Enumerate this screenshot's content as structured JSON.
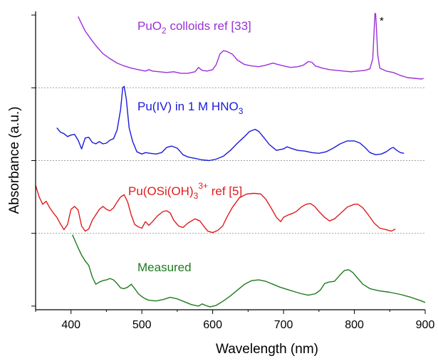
{
  "chart_data": {
    "type": "line",
    "title": "",
    "xlabel": "Wavelength (nm)",
    "ylabel": "Absorbance (a.u.)",
    "xlim": [
      350,
      900
    ],
    "x_ticks": [
      400,
      500,
      600,
      700,
      800,
      900
    ],
    "x_tick_labels": [
      "400",
      "500",
      "600",
      "700",
      "800",
      "900"
    ],
    "y_tick_labels_shown": false,
    "grid": "dotted baseline for each offset trace",
    "legend": "none",
    "baselines": [
      {
        "offset": 3,
        "color": "#a0a0a0",
        "style": "dotted"
      },
      {
        "offset": 2,
        "color": "#a0a0a0",
        "style": "dotted"
      },
      {
        "offset": 1,
        "color": "#a0a0a0",
        "style": "dotted"
      }
    ],
    "series": [
      {
        "label_main": "PuO",
        "label_sub": "2",
        "label_rest": " colloids ref [33]",
        "marker": "*",
        "color": "#9b30d9",
        "offset": 3,
        "points": [
          [
            410,
            0.98
          ],
          [
            415,
            0.88
          ],
          [
            420,
            0.78
          ],
          [
            428,
            0.67
          ],
          [
            435,
            0.58
          ],
          [
            445,
            0.47
          ],
          [
            455,
            0.4
          ],
          [
            465,
            0.34
          ],
          [
            475,
            0.3
          ],
          [
            485,
            0.27
          ],
          [
            495,
            0.25
          ],
          [
            505,
            0.23
          ],
          [
            510,
            0.25
          ],
          [
            515,
            0.23
          ],
          [
            525,
            0.22
          ],
          [
            535,
            0.21
          ],
          [
            545,
            0.22
          ],
          [
            555,
            0.2
          ],
          [
            565,
            0.2
          ],
          [
            575,
            0.22
          ],
          [
            580,
            0.28
          ],
          [
            585,
            0.24
          ],
          [
            592,
            0.23
          ],
          [
            600,
            0.25
          ],
          [
            605,
            0.32
          ],
          [
            610,
            0.46
          ],
          [
            615,
            0.51
          ],
          [
            620,
            0.5
          ],
          [
            628,
            0.46
          ],
          [
            635,
            0.38
          ],
          [
            645,
            0.32
          ],
          [
            655,
            0.3
          ],
          [
            665,
            0.29
          ],
          [
            675,
            0.31
          ],
          [
            685,
            0.34
          ],
          [
            692,
            0.32
          ],
          [
            700,
            0.3
          ],
          [
            710,
            0.28
          ],
          [
            720,
            0.29
          ],
          [
            728,
            0.31
          ],
          [
            735,
            0.36
          ],
          [
            740,
            0.35
          ],
          [
            745,
            0.3
          ],
          [
            755,
            0.27
          ],
          [
            765,
            0.25
          ],
          [
            775,
            0.24
          ],
          [
            785,
            0.23
          ],
          [
            795,
            0.22
          ],
          [
            805,
            0.23
          ],
          [
            815,
            0.24
          ],
          [
            822,
            0.26
          ],
          [
            826,
            0.4
          ],
          [
            828,
            0.8
          ],
          [
            829,
            1.02
          ],
          [
            830,
            1.02
          ],
          [
            831,
            0.85
          ],
          [
            833,
            0.45
          ],
          [
            836,
            0.27
          ],
          [
            845,
            0.23
          ],
          [
            855,
            0.21
          ],
          [
            865,
            0.17
          ],
          [
            875,
            0.14
          ],
          [
            885,
            0.13
          ],
          [
            895,
            0.12
          ],
          [
            898,
            0.13
          ]
        ]
      },
      {
        "label_main": "Pu(IV) in 1 M HNO",
        "label_sub": "3",
        "label_rest": "",
        "color": "#1a1adb",
        "offset": 2,
        "points": [
          [
            380,
            0.45
          ],
          [
            385,
            0.39
          ],
          [
            390,
            0.37
          ],
          [
            395,
            0.33
          ],
          [
            400,
            0.35
          ],
          [
            405,
            0.36
          ],
          [
            410,
            0.28
          ],
          [
            415,
            0.16
          ],
          [
            420,
            0.31
          ],
          [
            425,
            0.32
          ],
          [
            430,
            0.25
          ],
          [
            435,
            0.23
          ],
          [
            440,
            0.26
          ],
          [
            445,
            0.23
          ],
          [
            450,
            0.24
          ],
          [
            455,
            0.28
          ],
          [
            460,
            0.3
          ],
          [
            465,
            0.42
          ],
          [
            470,
            0.7
          ],
          [
            473,
            1.0
          ],
          [
            475,
            1.02
          ],
          [
            478,
            0.85
          ],
          [
            482,
            0.45
          ],
          [
            487,
            0.26
          ],
          [
            493,
            0.12
          ],
          [
            500,
            0.09
          ],
          [
            505,
            0.11
          ],
          [
            512,
            0.1
          ],
          [
            520,
            0.09
          ],
          [
            528,
            0.11
          ],
          [
            535,
            0.18
          ],
          [
            542,
            0.2
          ],
          [
            550,
            0.17
          ],
          [
            558,
            0.08
          ],
          [
            565,
            0.05
          ],
          [
            575,
            0.03
          ],
          [
            585,
            0.01
          ],
          [
            595,
            0.0
          ],
          [
            605,
            0.02
          ],
          [
            615,
            0.06
          ],
          [
            625,
            0.14
          ],
          [
            635,
            0.24
          ],
          [
            645,
            0.33
          ],
          [
            652,
            0.4
          ],
          [
            660,
            0.43
          ],
          [
            665,
            0.4
          ],
          [
            672,
            0.32
          ],
          [
            680,
            0.22
          ],
          [
            690,
            0.14
          ],
          [
            700,
            0.16
          ],
          [
            705,
            0.19
          ],
          [
            710,
            0.17
          ],
          [
            720,
            0.14
          ],
          [
            730,
            0.13
          ],
          [
            740,
            0.11
          ],
          [
            750,
            0.1
          ],
          [
            760,
            0.12
          ],
          [
            770,
            0.17
          ],
          [
            780,
            0.23
          ],
          [
            790,
            0.27
          ],
          [
            800,
            0.27
          ],
          [
            808,
            0.24
          ],
          [
            815,
            0.18
          ],
          [
            822,
            0.11
          ],
          [
            830,
            0.08
          ],
          [
            838,
            0.09
          ],
          [
            845,
            0.12
          ],
          [
            852,
            0.17
          ],
          [
            855,
            0.18
          ],
          [
            860,
            0.14
          ],
          [
            865,
            0.11
          ],
          [
            870,
            0.1
          ]
        ]
      },
      {
        "label_main": "Pu(OSi(OH)",
        "label_sub": "3",
        "label_sup": "3+",
        "label_rest": " ref [5]",
        "color": "#e01b1b",
        "offset": 1,
        "points": [
          [
            350,
            0.66
          ],
          [
            355,
            0.5
          ],
          [
            360,
            0.4
          ],
          [
            365,
            0.44
          ],
          [
            370,
            0.35
          ],
          [
            375,
            0.28
          ],
          [
            380,
            0.22
          ],
          [
            385,
            0.13
          ],
          [
            390,
            0.05
          ],
          [
            395,
            0.12
          ],
          [
            400,
            0.33
          ],
          [
            405,
            0.37
          ],
          [
            410,
            0.32
          ],
          [
            415,
            0.1
          ],
          [
            420,
            0.03
          ],
          [
            425,
            0.06
          ],
          [
            430,
            0.18
          ],
          [
            440,
            0.33
          ],
          [
            445,
            0.37
          ],
          [
            450,
            0.33
          ],
          [
            455,
            0.31
          ],
          [
            460,
            0.35
          ],
          [
            465,
            0.43
          ],
          [
            470,
            0.5
          ],
          [
            475,
            0.53
          ],
          [
            480,
            0.43
          ],
          [
            485,
            0.25
          ],
          [
            490,
            0.12
          ],
          [
            495,
            0.09
          ],
          [
            500,
            0.07
          ],
          [
            505,
            0.16
          ],
          [
            510,
            0.11
          ],
          [
            515,
            0.16
          ],
          [
            522,
            0.24
          ],
          [
            530,
            0.3
          ],
          [
            535,
            0.31
          ],
          [
            540,
            0.28
          ],
          [
            545,
            0.18
          ],
          [
            552,
            0.1
          ],
          [
            558,
            0.08
          ],
          [
            565,
            0.14
          ],
          [
            575,
            0.2
          ],
          [
            582,
            0.17
          ],
          [
            588,
            0.09
          ],
          [
            593,
            0.03
          ],
          [
            600,
            0.01
          ],
          [
            607,
            0.04
          ],
          [
            614,
            0.1
          ],
          [
            620,
            0.22
          ],
          [
            628,
            0.36
          ],
          [
            638,
            0.49
          ],
          [
            648,
            0.54
          ],
          [
            658,
            0.55
          ],
          [
            668,
            0.54
          ],
          [
            675,
            0.47
          ],
          [
            683,
            0.34
          ],
          [
            690,
            0.22
          ],
          [
            696,
            0.16
          ],
          [
            700,
            0.22
          ],
          [
            706,
            0.25
          ],
          [
            712,
            0.27
          ],
          [
            718,
            0.3
          ],
          [
            725,
            0.36
          ],
          [
            732,
            0.4
          ],
          [
            738,
            0.41
          ],
          [
            744,
            0.37
          ],
          [
            750,
            0.3
          ],
          [
            758,
            0.22
          ],
          [
            765,
            0.17
          ],
          [
            772,
            0.2
          ],
          [
            780,
            0.27
          ],
          [
            790,
            0.36
          ],
          [
            800,
            0.4
          ],
          [
            805,
            0.4
          ],
          [
            812,
            0.35
          ],
          [
            820,
            0.25
          ],
          [
            828,
            0.14
          ],
          [
            836,
            0.07
          ],
          [
            845,
            0.05
          ],
          [
            852,
            0.03
          ],
          [
            858,
            0.06
          ]
        ]
      },
      {
        "label_main": "Measured",
        "label_sub": "",
        "label_rest": "",
        "color": "#1e7a1e",
        "offset": 0,
        "points": [
          [
            402,
            0.98
          ],
          [
            406,
            0.89
          ],
          [
            410,
            0.8
          ],
          [
            415,
            0.7
          ],
          [
            420,
            0.62
          ],
          [
            425,
            0.56
          ],
          [
            430,
            0.4
          ],
          [
            435,
            0.3
          ],
          [
            440,
            0.33
          ],
          [
            445,
            0.35
          ],
          [
            450,
            0.36
          ],
          [
            455,
            0.38
          ],
          [
            460,
            0.36
          ],
          [
            465,
            0.31
          ],
          [
            470,
            0.25
          ],
          [
            475,
            0.24
          ],
          [
            480,
            0.26
          ],
          [
            485,
            0.3
          ],
          [
            490,
            0.24
          ],
          [
            495,
            0.17
          ],
          [
            500,
            0.13
          ],
          [
            505,
            0.1
          ],
          [
            510,
            0.08
          ],
          [
            520,
            0.07
          ],
          [
            530,
            0.09
          ],
          [
            540,
            0.12
          ],
          [
            550,
            0.1
          ],
          [
            560,
            0.06
          ],
          [
            570,
            0.02
          ],
          [
            580,
            0.0
          ],
          [
            585,
            0.03
          ],
          [
            590,
            0.01
          ],
          [
            596,
            -0.01
          ],
          [
            605,
            0.01
          ],
          [
            615,
            0.07
          ],
          [
            625,
            0.14
          ],
          [
            635,
            0.22
          ],
          [
            645,
            0.3
          ],
          [
            655,
            0.35
          ],
          [
            665,
            0.36
          ],
          [
            675,
            0.34
          ],
          [
            685,
            0.3
          ],
          [
            695,
            0.26
          ],
          [
            705,
            0.23
          ],
          [
            715,
            0.2
          ],
          [
            725,
            0.17
          ],
          [
            735,
            0.15
          ],
          [
            745,
            0.17
          ],
          [
            752,
            0.22
          ],
          [
            758,
            0.31
          ],
          [
            764,
            0.33
          ],
          [
            772,
            0.34
          ],
          [
            780,
            0.43
          ],
          [
            786,
            0.49
          ],
          [
            792,
            0.5
          ],
          [
            798,
            0.46
          ],
          [
            804,
            0.39
          ],
          [
            812,
            0.3
          ],
          [
            822,
            0.24
          ],
          [
            835,
            0.21
          ],
          [
            850,
            0.19
          ],
          [
            865,
            0.16
          ],
          [
            880,
            0.12
          ],
          [
            895,
            0.07
          ],
          [
            900,
            0.05
          ]
        ]
      }
    ]
  }
}
